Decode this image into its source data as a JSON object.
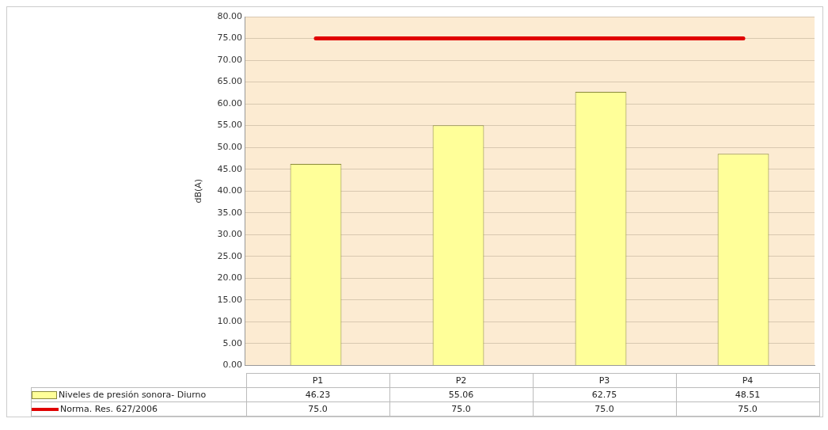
{
  "chart_data": {
    "type": "bar",
    "ylabel": "dB(A)",
    "categories": [
      "P1",
      "P2",
      "P3",
      "P4"
    ],
    "series": [
      {
        "name": "Niveles de presión sonora- Diurno",
        "color": "#ffff99",
        "values": [
          46.23,
          55.06,
          62.75,
          48.51
        ],
        "value_labels": [
          "46.23",
          "55.06",
          "62.75",
          "48.51"
        ]
      },
      {
        "name": "Norma. Res. 627/2006",
        "type": "line",
        "color": "#e00000",
        "values": [
          75,
          75,
          75,
          75
        ],
        "value_labels": [
          "75.0",
          "75.0",
          "75.0",
          "75.0"
        ]
      }
    ],
    "ylim": [
      0,
      80
    ],
    "yticks": [
      {
        "value": 0,
        "label": "0.00"
      },
      {
        "value": 5,
        "label": "5.00"
      },
      {
        "value": 10,
        "label": "10.00"
      },
      {
        "value": 15,
        "label": "15.00"
      },
      {
        "value": 20,
        "label": "20.00"
      },
      {
        "value": 25,
        "label": "25.00"
      },
      {
        "value": 30,
        "label": "30.00"
      },
      {
        "value": 35,
        "label": "35.00"
      },
      {
        "value": 40,
        "label": "40.00"
      },
      {
        "value": 45,
        "label": "45.00"
      },
      {
        "value": 50,
        "label": "50.00"
      },
      {
        "value": 55,
        "label": "55.00"
      },
      {
        "value": 60,
        "label": "60.00"
      },
      {
        "value": 65,
        "label": "65.00"
      },
      {
        "value": 70,
        "label": "70.00"
      },
      {
        "value": 75,
        "label": "75.00"
      },
      {
        "value": 80,
        "label": "80.00"
      }
    ],
    "grid": "y",
    "legend": "bottom"
  }
}
